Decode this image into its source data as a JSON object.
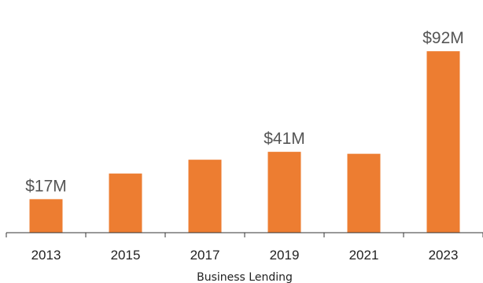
{
  "chart_data": {
    "type": "bar",
    "xlabel": "Business Lending",
    "ylabel": "",
    "title": "",
    "categories": [
      "2013",
      "2015",
      "2017",
      "2019",
      "2021",
      "2023"
    ],
    "values": [
      17,
      30,
      37,
      41,
      40,
      92
    ],
    "data_labels": [
      "$17M",
      "",
      "",
      "$41M",
      "",
      "$92M"
    ],
    "ylim": [
      0,
      110
    ],
    "bar_color": "#ED7D31",
    "grid": false
  }
}
